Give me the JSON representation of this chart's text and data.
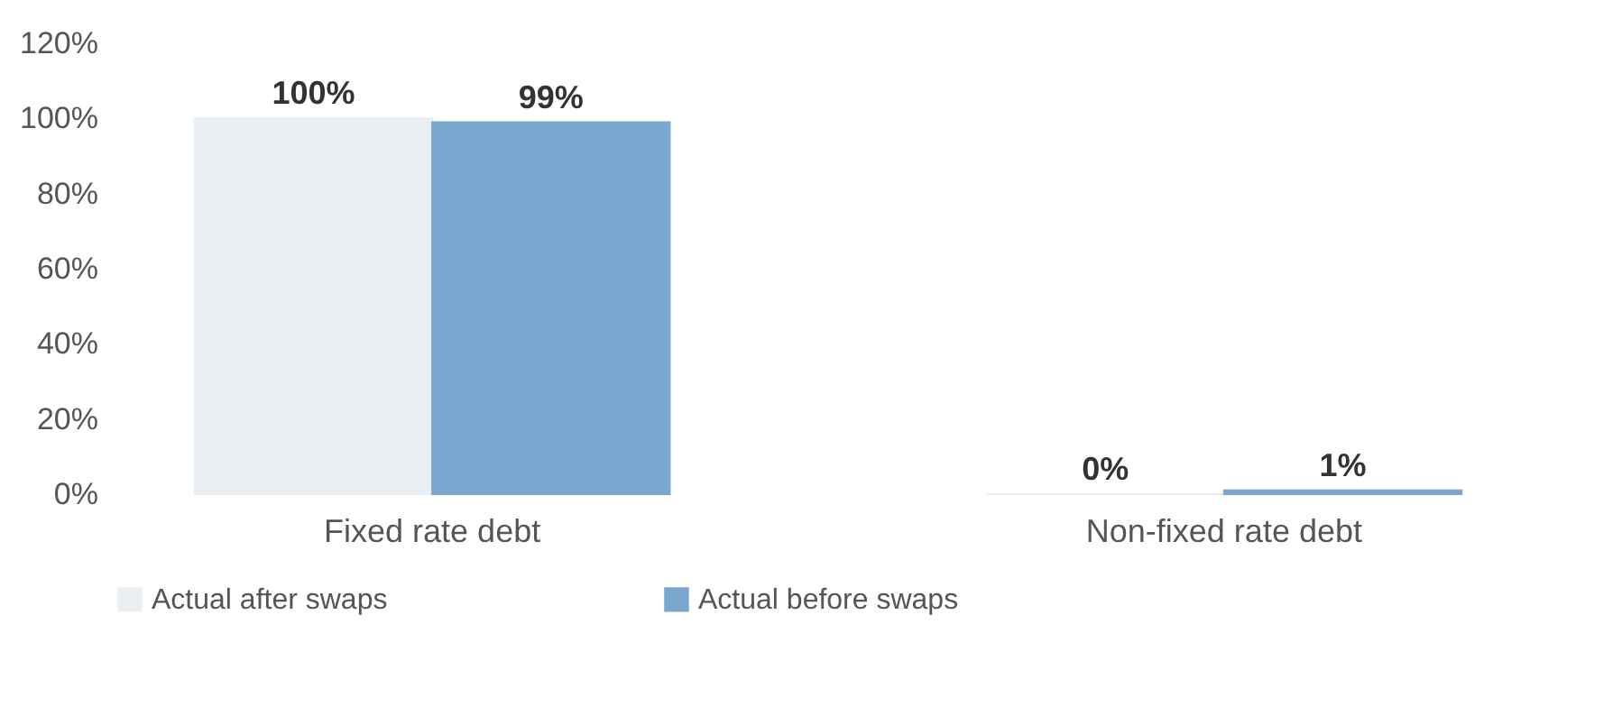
{
  "chart_data": {
    "type": "bar",
    "categories": [
      "Fixed rate debt",
      "Non-fixed rate debt"
    ],
    "series": [
      {
        "name": "Actual after swaps",
        "color": "#e9eef3",
        "values": [
          100,
          0
        ],
        "value_labels": [
          "100%",
          "0%"
        ]
      },
      {
        "name": "Actual before swaps",
        "color": "#7aa7cf",
        "values": [
          99,
          1
        ],
        "value_labels": [
          "99%",
          "1%"
        ]
      }
    ],
    "ylim": [
      0,
      120
    ],
    "yticks": [
      {
        "value": 0,
        "label": "0%"
      },
      {
        "value": 20,
        "label": "20%"
      },
      {
        "value": 40,
        "label": "40%"
      },
      {
        "value": 60,
        "label": "60%"
      },
      {
        "value": 80,
        "label": "80%"
      },
      {
        "value": 100,
        "label": "100%"
      },
      {
        "value": 120,
        "label": "120%"
      }
    ],
    "grid": false,
    "legend": "bottom"
  }
}
